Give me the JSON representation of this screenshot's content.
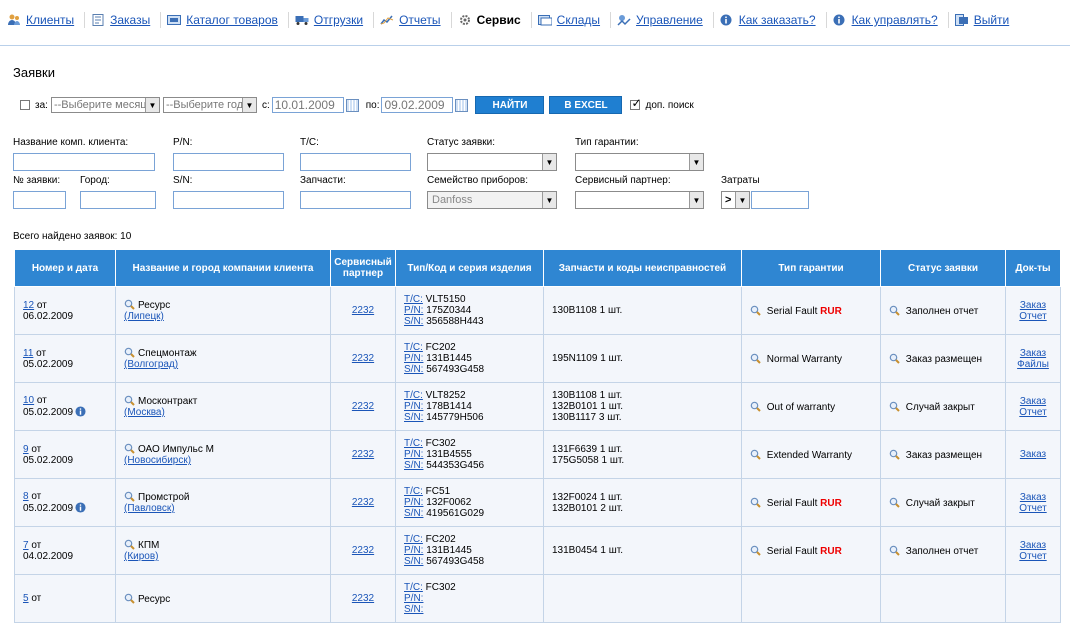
{
  "nav": [
    {
      "name": "nav-clients",
      "icon": "clients-icon",
      "label": "Клиенты",
      "active": false
    },
    {
      "name": "nav-orders",
      "icon": "orders-icon",
      "label": "Заказы",
      "active": false
    },
    {
      "name": "nav-catalog",
      "icon": "catalog-icon",
      "label": "Каталог товаров",
      "active": false
    },
    {
      "name": "nav-shipments",
      "icon": "truck-icon",
      "label": "Отгрузки",
      "active": false
    },
    {
      "name": "nav-reports",
      "icon": "reports-icon",
      "label": "Отчеты",
      "active": false
    },
    {
      "name": "nav-service",
      "icon": "gear-icon",
      "label": "Сервис",
      "active": true
    },
    {
      "name": "nav-warehouses",
      "icon": "warehouse-icon",
      "label": "Склады",
      "active": false
    },
    {
      "name": "nav-management",
      "icon": "management-icon",
      "label": "Управление",
      "active": false
    },
    {
      "name": "nav-how-to-order",
      "icon": "info-icon",
      "label": "Как заказать?",
      "active": false
    },
    {
      "name": "nav-how-to-manage",
      "icon": "info-icon",
      "label": "Как управлять?",
      "active": false
    },
    {
      "name": "nav-logout",
      "icon": "logout-icon",
      "label": "Выйти",
      "active": false
    }
  ],
  "page_title": "Заявки",
  "filter": {
    "for_label": "за:",
    "month_placeholder": "--Выберите месяц--",
    "year_placeholder": "--Выберите год--",
    "from_label": "с:",
    "from_value": "10.01.2009",
    "to_label": "по:",
    "to_value": "09.02.2009",
    "find_button": "НАЙТИ",
    "excel_button": "В EXCEL",
    "extra_search_label": "доп. поиск",
    "extra_search_checked": true
  },
  "search": {
    "client_name_label": "Название комп. клиента:",
    "pn_label": "P/N:",
    "tc_label": "T/C:",
    "status_label": "Статус заявки:",
    "warranty_type_label": "Тип гарантии:",
    "request_no_label": "№ заявки:",
    "city_label": "Город:",
    "sn_label": "S/N:",
    "parts_label": "Запчасти:",
    "device_family_label": "Семейство приборов:",
    "device_family_value": "Danfoss",
    "service_partner_label": "Сервисный партнер:",
    "costs_label": "Затраты",
    "costs_operator": ">"
  },
  "total_label": "Всего найдено заявок: 10",
  "table": {
    "headers": {
      "number_date": "Номер и дата",
      "client": "Название и город компании клиента",
      "partner": "Сервисный партнер",
      "type_code": "Тип/Код и серия изделия",
      "parts": "Запчасти и коды неисправностей",
      "warranty": "Тип гарантии",
      "status": "Статус заявки",
      "docs": "Док-ты"
    },
    "rows": [
      {
        "num": "12",
        "ot": "от",
        "date": "06.02.2009",
        "info": false,
        "client": "Ресурс",
        "city": "(Липецк)",
        "partner": "2232",
        "tc": "VLT5150",
        "pn": "175Z0344",
        "sn": "356588H443",
        "parts": [
          "130B1108 1 шт."
        ],
        "warranty": "Serial Fault",
        "rur": "RUR",
        "status": "Заполнен отчет",
        "docs": [
          "Заказ",
          "Отчет"
        ]
      },
      {
        "num": "11",
        "ot": "от",
        "date": "05.02.2009",
        "info": false,
        "client": "Спецмонтаж",
        "city": "(Волгоград)",
        "partner": "2232",
        "tc": "FC202",
        "pn": "131B1445",
        "sn": "567493G458",
        "parts": [
          "195N1109 1 шт."
        ],
        "warranty": "Normal Warranty",
        "rur": "",
        "status": "Заказ размещен",
        "docs": [
          "Заказ",
          "Файлы"
        ]
      },
      {
        "num": "10",
        "ot": "от",
        "date": "05.02.2009",
        "info": true,
        "client": "Москонтракт",
        "city": "(Москва)",
        "partner": "2232",
        "tc": "VLT8252",
        "pn": "178B1414",
        "sn": "145779H506",
        "parts": [
          "130B1108 1 шт.",
          "132B0101 1 шт.",
          "130B1117 3 шт."
        ],
        "warranty": "Out of warranty",
        "rur": "",
        "status": "Случай закрыт",
        "docs": [
          "Заказ",
          "Отчет"
        ]
      },
      {
        "num": "9",
        "ot": "от",
        "date": "05.02.2009",
        "info": false,
        "client": "ОАО Импульс М",
        "city": "(Новосибирск)",
        "partner": "2232",
        "tc": "FC302",
        "pn": "131B4555",
        "sn": "544353G456",
        "parts": [
          "131F6639 1 шт.",
          "175G5058 1 шт."
        ],
        "warranty": "Extended Warranty",
        "rur": "",
        "status": "Заказ размещен",
        "docs": [
          "Заказ"
        ]
      },
      {
        "num": "8",
        "ot": "от",
        "date": "05.02.2009",
        "info": true,
        "client": "Промстрой",
        "city": "(Павловск)",
        "partner": "2232",
        "tc": "FC51",
        "pn": "132F0062",
        "sn": "419561G029",
        "parts": [
          "132F0024 1 шт.",
          "132B0101 2 шт."
        ],
        "warranty": "Serial Fault",
        "rur": "RUR",
        "status": "Случай закрыт",
        "docs": [
          "Заказ",
          "Отчет"
        ]
      },
      {
        "num": "7",
        "ot": "от",
        "date": "04.02.2009",
        "info": false,
        "client": "КПМ",
        "city": "(Киров)",
        "partner": "2232",
        "tc": "FC202",
        "pn": "131B1445",
        "sn": "567493G458",
        "parts": [
          "131B0454 1 шт."
        ],
        "warranty": "Serial Fault",
        "rur": "RUR",
        "status": "Заполнен отчет",
        "docs": [
          "Заказ",
          "Отчет"
        ]
      },
      {
        "num": "5",
        "ot": "от",
        "date": "",
        "info": false,
        "client": "Ресурс",
        "city": "",
        "partner": "2232",
        "tc": "FC302",
        "pn": "",
        "sn": "",
        "parts": [],
        "warranty": "",
        "rur": "",
        "status": "",
        "docs": []
      }
    ],
    "field_labels": {
      "tc": "T/C:",
      "pn": "P/N:",
      "sn": "S/N:"
    }
  }
}
